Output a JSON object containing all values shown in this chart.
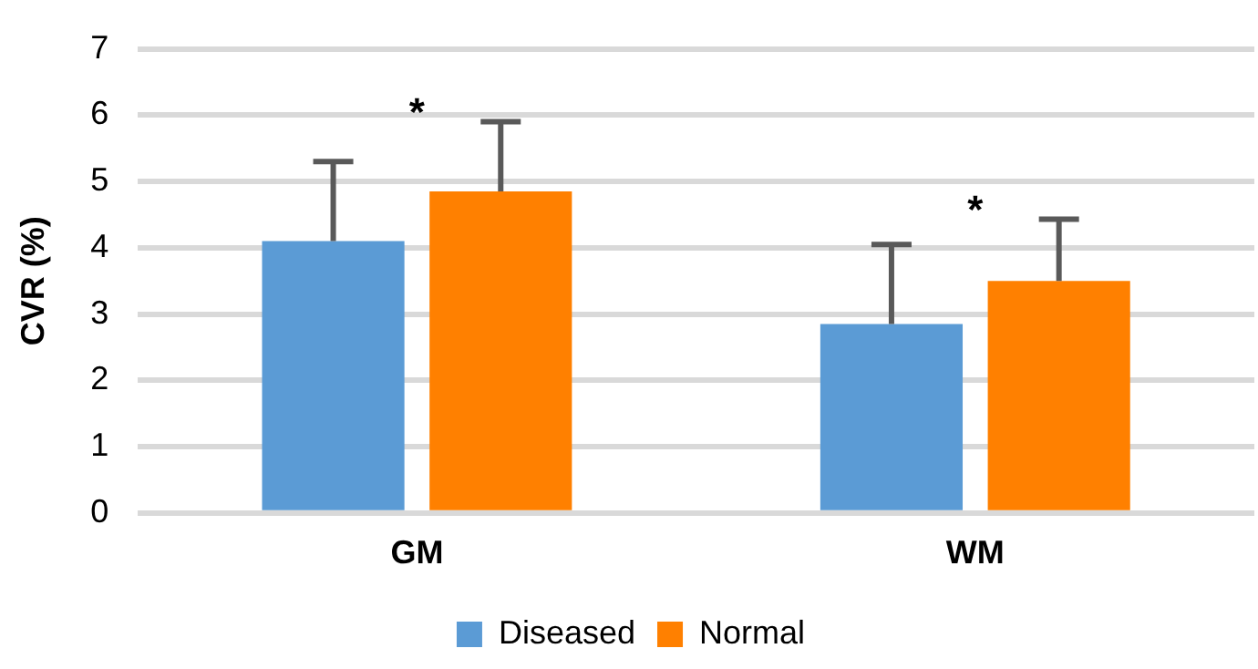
{
  "chart_data": {
    "type": "bar",
    "ylabel": "CVR (%)",
    "categories": [
      "GM",
      "WM"
    ],
    "series": [
      {
        "name": "Diseased",
        "color": "#5b9bd5",
        "values": [
          4.1,
          2.85
        ],
        "errors": [
          [
            4.1,
            5.3
          ],
          [
            2.85,
            4.05
          ]
        ]
      },
      {
        "name": "Normal",
        "color": "#ff8000",
        "values": [
          4.85,
          3.5
        ],
        "errors": [
          [
            4.85,
            5.9
          ],
          [
            3.5,
            4.43
          ]
        ]
      }
    ],
    "ylim": [
      0,
      7
    ],
    "yticks": [
      0,
      1,
      2,
      3,
      4,
      5,
      6,
      7
    ],
    "grid": "y",
    "legend": "bottom",
    "annotations": [
      "*",
      "*"
    ]
  }
}
